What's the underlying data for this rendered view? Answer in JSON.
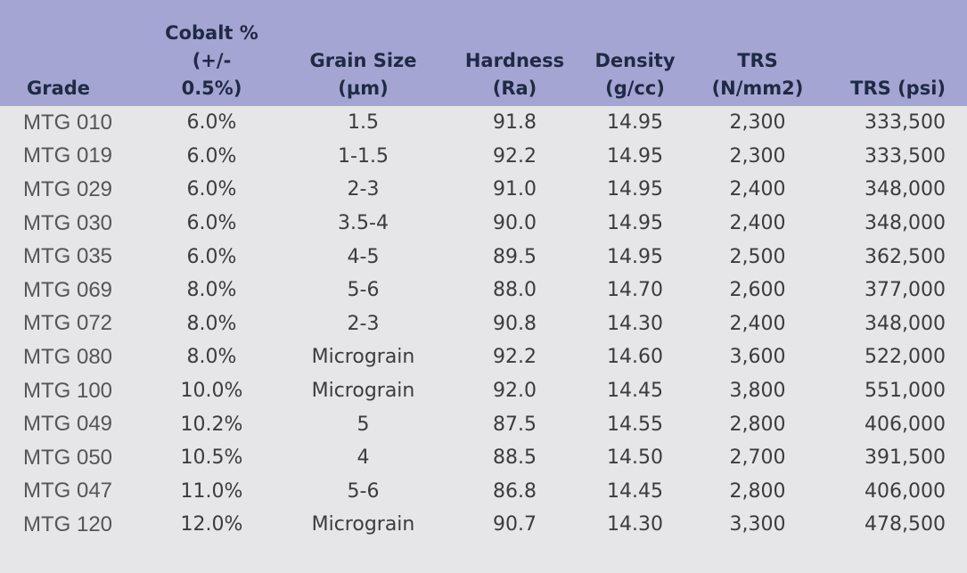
{
  "header": {
    "grade": "Grade",
    "cobalt_line1": "Cobalt %",
    "cobalt_line2": "(+/-",
    "cobalt_line3": "0.5%)",
    "grain_line1": "Grain Size",
    "grain_line2": "(µm)",
    "hardness_line1": "Hardness",
    "hardness_line2": "(Ra)",
    "density_line1": "Density",
    "density_line2": "(g/cc)",
    "trs_line1": "TRS",
    "trs_line2": "(N/mm2)",
    "trs_psi": "TRS (psi)"
  },
  "rows": [
    {
      "grade": "MTG 010",
      "cobalt": "6.0%",
      "grain": "1.5",
      "hardness": "91.8",
      "density": "14.95",
      "trs": "2,300",
      "psi": "333,500"
    },
    {
      "grade": "MTG 019",
      "cobalt": "6.0%",
      "grain": "1-1.5",
      "hardness": "92.2",
      "density": "14.95",
      "trs": "2,300",
      "psi": "333,500"
    },
    {
      "grade": "MTG 029",
      "cobalt": "6.0%",
      "grain": "2-3",
      "hardness": "91.0",
      "density": "14.95",
      "trs": "2,400",
      "psi": "348,000"
    },
    {
      "grade": "MTG 030",
      "cobalt": "6.0%",
      "grain": "3.5-4",
      "hardness": "90.0",
      "density": "14.95",
      "trs": "2,400",
      "psi": "348,000"
    },
    {
      "grade": "MTG 035",
      "cobalt": "6.0%",
      "grain": "4-5",
      "hardness": "89.5",
      "density": "14.95",
      "trs": "2,500",
      "psi": "362,500"
    },
    {
      "grade": "MTG 069",
      "cobalt": "8.0%",
      "grain": "5-6",
      "hardness": "88.0",
      "density": "14.70",
      "trs": "2,600",
      "psi": "377,000"
    },
    {
      "grade": "MTG 072",
      "cobalt": "8.0%",
      "grain": "2-3",
      "hardness": "90.8",
      "density": "14.30",
      "trs": "2,400",
      "psi": "348,000"
    },
    {
      "grade": "MTG 080",
      "cobalt": "8.0%",
      "grain": "Micrograin",
      "hardness": "92.2",
      "density": "14.60",
      "trs": "3,600",
      "psi": "522,000"
    },
    {
      "grade": "MTG 100",
      "cobalt": "10.0%",
      "grain": "Micrograin",
      "hardness": "92.0",
      "density": "14.45",
      "trs": "3,800",
      "psi": "551,000"
    },
    {
      "grade": "MTG 049",
      "cobalt": "10.2%",
      "grain": "5",
      "hardness": "87.5",
      "density": "14.55",
      "trs": "2,800",
      "psi": "406,000"
    },
    {
      "grade": "MTG 050",
      "cobalt": "10.5%",
      "grain": "4",
      "hardness": "88.5",
      "density": "14.50",
      "trs": "2,700",
      "psi": "391,500"
    },
    {
      "grade": "MTG 047",
      "cobalt": "11.0%",
      "grain": "5-6",
      "hardness": "86.8",
      "density": "14.45",
      "trs": "2,800",
      "psi": "406,000"
    },
    {
      "grade": "MTG 120",
      "cobalt": "12.0%",
      "grain": "Micrograin",
      "hardness": "90.7",
      "density": "14.30",
      "trs": "3,300",
      "psi": "478,500"
    }
  ]
}
